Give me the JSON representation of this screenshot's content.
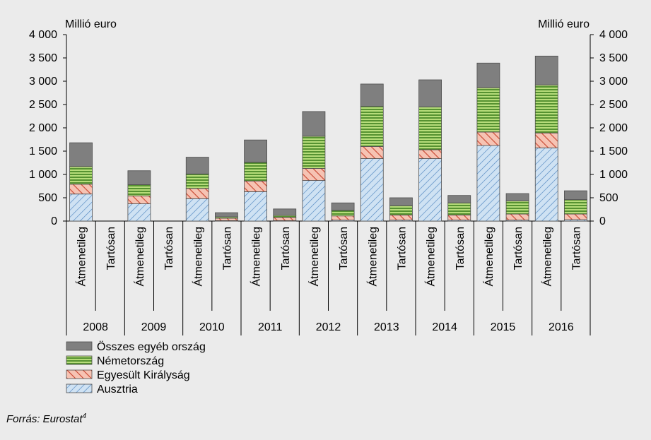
{
  "chart_data": {
    "type": "bar",
    "stacked": true,
    "ylabel_left": "Millió euro",
    "ylabel_right": "Millió euro",
    "ylim": [
      0,
      4000
    ],
    "yticks": [
      0,
      500,
      1000,
      1500,
      2000,
      2500,
      3000,
      3500,
      4000
    ],
    "ytick_labels": [
      "0",
      "500",
      "1 000",
      "1 500",
      "2 000",
      "2 500",
      "3 000",
      "3 500",
      "4 000"
    ],
    "years": [
      "2008",
      "2009",
      "2010",
      "2011",
      "2012",
      "2013",
      "2014",
      "2015",
      "2016"
    ],
    "subcategories": [
      "Átmenetileg",
      "Tartósan"
    ],
    "categories": [
      "2008 Átmenetileg",
      "2008 Tartósan",
      "2009 Átmenetileg",
      "2009 Tartósan",
      "2010 Átmenetileg",
      "2010 Tartósan",
      "2011 Átmenetileg",
      "2011 Tartósan",
      "2012 Átmenetileg",
      "2012 Tartósan",
      "2013 Átmenetileg",
      "2013 Tartósan",
      "2014 Átmenetileg",
      "2014 Tartósan",
      "2015 Átmenetileg",
      "2015 Tartósan",
      "2016 Átmenetileg",
      "2016 Tartósan"
    ],
    "series": [
      {
        "name": "Ausztria",
        "color": "#c5dcf0",
        "pattern": "hatch-blue",
        "values": [
          580,
          0,
          370,
          0,
          480,
          10,
          630,
          10,
          870,
          20,
          1340,
          20,
          1340,
          20,
          1620,
          20,
          1570,
          30
        ]
      },
      {
        "name": "Egyesült Királyság",
        "color": "#f2b8a8",
        "pattern": "hatch-red",
        "values": [
          210,
          0,
          170,
          0,
          220,
          50,
          230,
          70,
          260,
          90,
          260,
          110,
          190,
          110,
          290,
          130,
          320,
          120
        ]
      },
      {
        "name": "Németország",
        "color": "#9ccc5a",
        "pattern": "stripe-green",
        "values": [
          380,
          0,
          240,
          0,
          310,
          30,
          400,
          40,
          690,
          120,
          860,
          200,
          920,
          260,
          950,
          280,
          1030,
          310
        ]
      },
      {
        "name": "Összes egyéb ország",
        "color": "#7f7f7f",
        "pattern": "solid-gray",
        "values": [
          510,
          0,
          300,
          0,
          360,
          90,
          480,
          140,
          530,
          160,
          480,
          170,
          580,
          160,
          530,
          160,
          620,
          190
        ]
      }
    ],
    "legend_position": "bottom-left",
    "legend_order": [
      "Összes egyéb ország",
      "Németország",
      "Egyesült Királyság",
      "Ausztria"
    ],
    "grid": false
  },
  "footer": {
    "source_text": "Forrás: Eurostat",
    "source_sup": "4"
  }
}
